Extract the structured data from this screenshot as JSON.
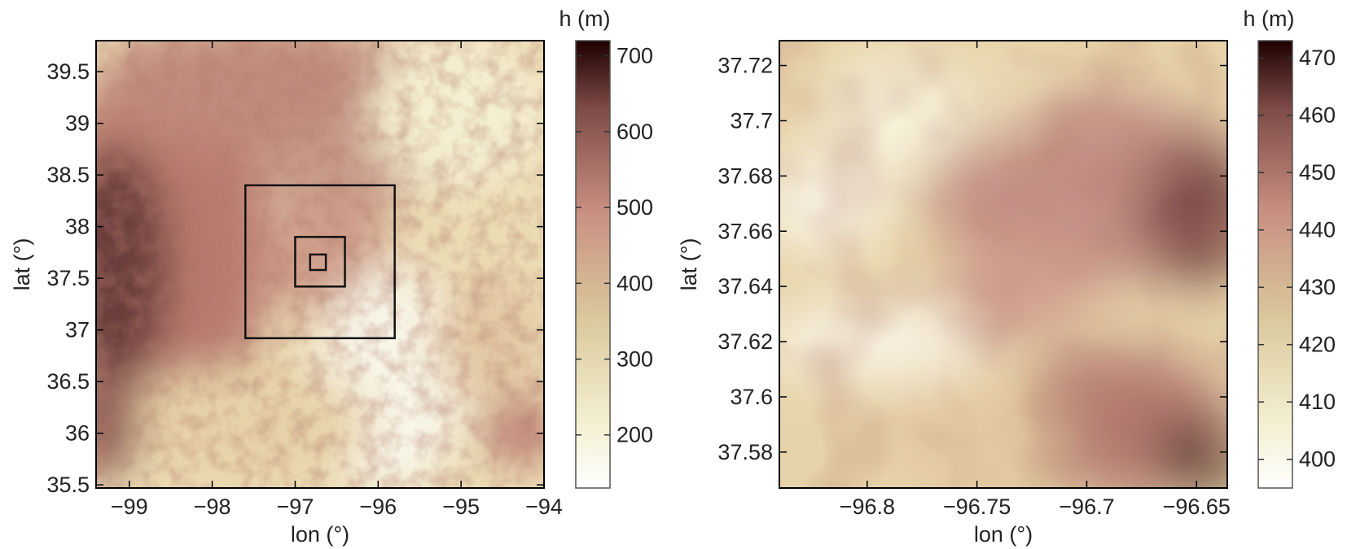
{
  "chart_data": [
    {
      "type": "heatmap",
      "title": "",
      "xlabel": "lon (°)",
      "ylabel": "lat (°)",
      "xlim": [
        -99.4,
        -94.0
      ],
      "ylim": [
        35.47,
        39.8
      ],
      "xticks": [
        -99,
        -98,
        -97,
        -96,
        -95,
        -94
      ],
      "xtick_labels": [
        "−99",
        "−98",
        "−97",
        "−96",
        "−95",
        "−94"
      ],
      "yticks": [
        35.5,
        36,
        36.5,
        37,
        37.5,
        38,
        38.5,
        39,
        39.5
      ],
      "ytick_labels": [
        "35.5",
        "36",
        "36.5",
        "37",
        "37.5",
        "38",
        "38.5",
        "39",
        "39.5"
      ],
      "colorbar": {
        "title": "h (m)",
        "range": [
          130,
          720
        ],
        "ticks": [
          200,
          300,
          400,
          500,
          600,
          700
        ],
        "tick_labels": [
          "200",
          "300",
          "400",
          "500",
          "600",
          "700"
        ]
      },
      "nested_boxes": [
        {
          "lon": [
            -97.6,
            -95.8
          ],
          "lat": [
            36.92,
            38.4
          ]
        },
        {
          "lon": [
            -97.0,
            -96.4
          ],
          "lat": [
            37.42,
            37.9
          ]
        },
        {
          "lon": [
            -96.82,
            -96.63
          ],
          "lat": [
            37.58,
            37.73
          ]
        }
      ],
      "colormap": [
        "#ffffff",
        "#f3efcf",
        "#dbc89c",
        "#c88f81",
        "#7d4a46",
        "#1d0000"
      ]
    },
    {
      "type": "heatmap",
      "title": "",
      "xlabel": "lon (°)",
      "ylabel": "lat (°)",
      "xlim": [
        -96.84,
        -96.636
      ],
      "ylim": [
        37.567,
        37.729
      ],
      "xticks": [
        -96.8,
        -96.75,
        -96.7,
        -96.65
      ],
      "xtick_labels": [
        "−96.8",
        "−96.75",
        "−96.7",
        "−96.65"
      ],
      "yticks": [
        37.58,
        37.6,
        37.62,
        37.64,
        37.66,
        37.68,
        37.7,
        37.72
      ],
      "ytick_labels": [
        "37.58",
        "37.6",
        "37.62",
        "37.64",
        "37.66",
        "37.68",
        "37.7",
        "37.72"
      ],
      "colorbar": {
        "title": "h (m)",
        "range": [
          395,
          473
        ],
        "ticks": [
          400,
          410,
          420,
          430,
          440,
          450,
          460,
          470
        ],
        "tick_labels": [
          "400",
          "410",
          "420",
          "430",
          "440",
          "450",
          "460",
          "470"
        ]
      },
      "colormap": [
        "#ffffff",
        "#f3efcf",
        "#dbc89c",
        "#c88f81",
        "#7d4a46",
        "#1d0000"
      ]
    }
  ]
}
